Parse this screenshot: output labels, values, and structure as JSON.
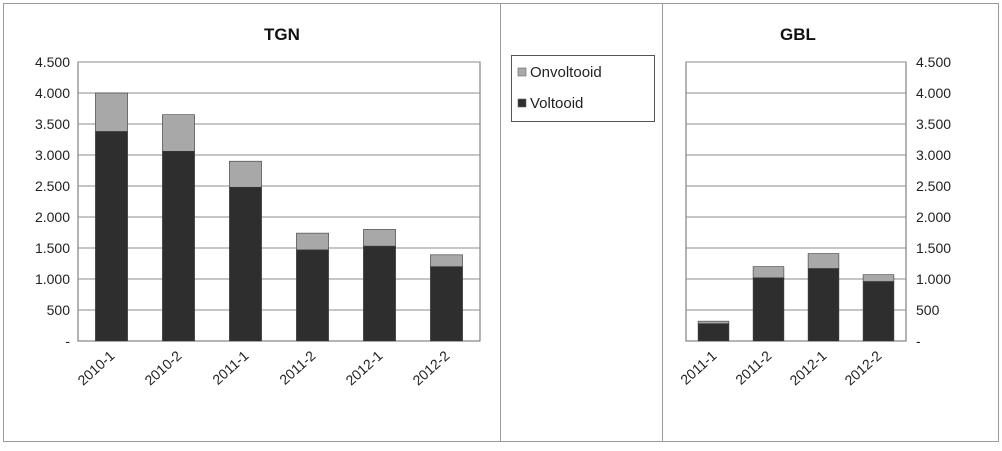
{
  "chart_data": [
    {
      "type": "bar",
      "stacked": true,
      "title": "TGN",
      "categories": [
        "2010-1",
        "2010-2",
        "2011-1",
        "2011-2",
        "2012-1",
        "2012-2"
      ],
      "series": [
        {
          "name": "Voltooid",
          "values": [
            3380,
            3060,
            2480,
            1470,
            1530,
            1200
          ]
        },
        {
          "name": "Onvoltooid",
          "values": [
            620,
            590,
            420,
            270,
            270,
            190
          ]
        }
      ],
      "ylim": [
        0,
        4500
      ],
      "yticks": [
        0,
        500,
        1000,
        1500,
        2000,
        2500,
        3000,
        3500,
        4000,
        4500
      ],
      "ytick_labels": [
        "-",
        "500",
        "1.000",
        "1.500",
        "2.000",
        "2.500",
        "3.000",
        "3.500",
        "4.000",
        "4.500"
      ],
      "grid": true,
      "yaxis_side": "left"
    },
    {
      "type": "bar",
      "stacked": true,
      "title": "GBL",
      "categories": [
        "2011-1",
        "2011-2",
        "2012-1",
        "2012-2"
      ],
      "series": [
        {
          "name": "Voltooid",
          "values": [
            280,
            1020,
            1170,
            960
          ]
        },
        {
          "name": "Onvoltooid",
          "values": [
            40,
            180,
            240,
            110
          ]
        }
      ],
      "ylim": [
        0,
        4500
      ],
      "yticks": [
        0,
        500,
        1000,
        1500,
        2000,
        2500,
        3000,
        3500,
        4000,
        4500
      ],
      "ytick_labels": [
        "-",
        "500",
        "1.000",
        "1.500",
        "2.000",
        "2.500",
        "3.000",
        "3.500",
        "4.000",
        "4.500"
      ],
      "grid": true,
      "yaxis_side": "right"
    }
  ],
  "legend": {
    "placement": "center",
    "items": [
      {
        "label": "Onvoltooid",
        "color": "#a8a8a8"
      },
      {
        "label": "Voltooid",
        "color": "#2e2e2e"
      }
    ]
  },
  "colors": {
    "voltooid": "#2e2e2e",
    "onvoltooid": "#a8a8a8",
    "grid": "#8c8c8c",
    "frame": "#9a9a9a"
  }
}
